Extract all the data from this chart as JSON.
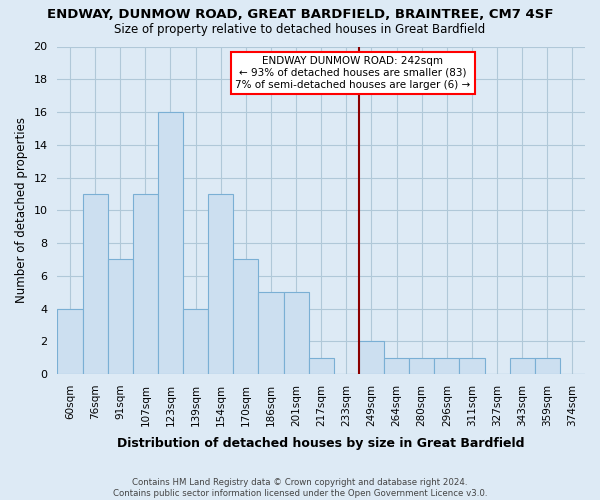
{
  "title": "ENDWAY, DUNMOW ROAD, GREAT BARDFIELD, BRAINTREE, CM7 4SF",
  "subtitle": "Size of property relative to detached houses in Great Bardfield",
  "xlabel": "Distribution of detached houses by size in Great Bardfield",
  "ylabel": "Number of detached properties",
  "bar_labels": [
    "60sqm",
    "76sqm",
    "91sqm",
    "107sqm",
    "123sqm",
    "139sqm",
    "154sqm",
    "170sqm",
    "186sqm",
    "201sqm",
    "217sqm",
    "233sqm",
    "249sqm",
    "264sqm",
    "280sqm",
    "296sqm",
    "311sqm",
    "327sqm",
    "343sqm",
    "359sqm",
    "374sqm"
  ],
  "bar_values": [
    4,
    11,
    7,
    11,
    16,
    4,
    11,
    7,
    5,
    5,
    1,
    0,
    2,
    1,
    1,
    1,
    1,
    0,
    1,
    1,
    0
  ],
  "bar_color": "#ccdff0",
  "bar_edge_color": "#7aafd4",
  "ref_line_color": "#8b0000",
  "ref_bar_index": 12,
  "annotation_title": "ENDWAY DUNMOW ROAD: 242sqm",
  "annotation_line1": "← 93% of detached houses are smaller (83)",
  "annotation_line2": "7% of semi-detached houses are larger (6) →",
  "ylim": [
    0,
    20
  ],
  "yticks": [
    0,
    2,
    4,
    6,
    8,
    10,
    12,
    14,
    16,
    18,
    20
  ],
  "bg_color": "#ddeaf5",
  "grid_color": "#b0c8d8",
  "footer_line1": "Contains HM Land Registry data © Crown copyright and database right 2024.",
  "footer_line2": "Contains public sector information licensed under the Open Government Licence v3.0."
}
